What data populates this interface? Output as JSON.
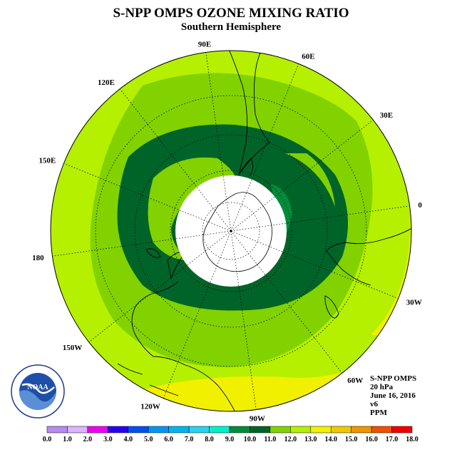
{
  "header": {
    "title": "S-NPP OMPS OZONE MIXING RATIO",
    "subtitle": "Southern Hemisphere"
  },
  "map": {
    "projection": "south polar stereographic",
    "longitude_labels": [
      {
        "text": "90W",
        "lon": -90
      },
      {
        "text": "60W",
        "lon": -60
      },
      {
        "text": "30W",
        "lon": -30
      },
      {
        "text": "0",
        "lon": 0
      },
      {
        "text": "30E",
        "lon": 30
      },
      {
        "text": "60E",
        "lon": 60
      },
      {
        "text": "90E",
        "lon": 90
      },
      {
        "text": "120E",
        "lon": 120
      },
      {
        "text": "150E",
        "lon": 150
      },
      {
        "text": "180",
        "lon": 180
      },
      {
        "text": "150W",
        "lon": -150
      },
      {
        "text": "120W",
        "lon": -120
      }
    ],
    "no_data_region": "polar night"
  },
  "info": {
    "instrument": "S-NPP OMPS",
    "level": "20 hPa",
    "date": "June 16, 2016",
    "version": "v6",
    "units": "PPM"
  },
  "logo": {
    "name": "noaa-logo",
    "text": "NOAA",
    "ring_text": "NATIONAL OCEANIC AND ATMOSPHERIC ADMINISTRATION · U.S. DEPARTMENT OF COMMERCE"
  },
  "colorbar": {
    "ticks": [
      "0.0",
      "1.0",
      "2.0",
      "3.0",
      "4.0",
      "5.0",
      "6.0",
      "7.0",
      "8.0",
      "9.0",
      "10.0",
      "11.0",
      "12.0",
      "13.0",
      "14.0",
      "15.0",
      "16.0",
      "17.0",
      "18.0"
    ],
    "colors": [
      "#b48cf0",
      "#dcb4ff",
      "#f000f0",
      "#2800f0",
      "#0050f0",
      "#0096f0",
      "#00b4f0",
      "#28d2f0",
      "#00f0c8",
      "#008c3c",
      "#006428",
      "#82d200",
      "#b4f000",
      "#f0f000",
      "#f0c800",
      "#f09600",
      "#f05000",
      "#f00000",
      "#8c6446"
    ]
  }
}
